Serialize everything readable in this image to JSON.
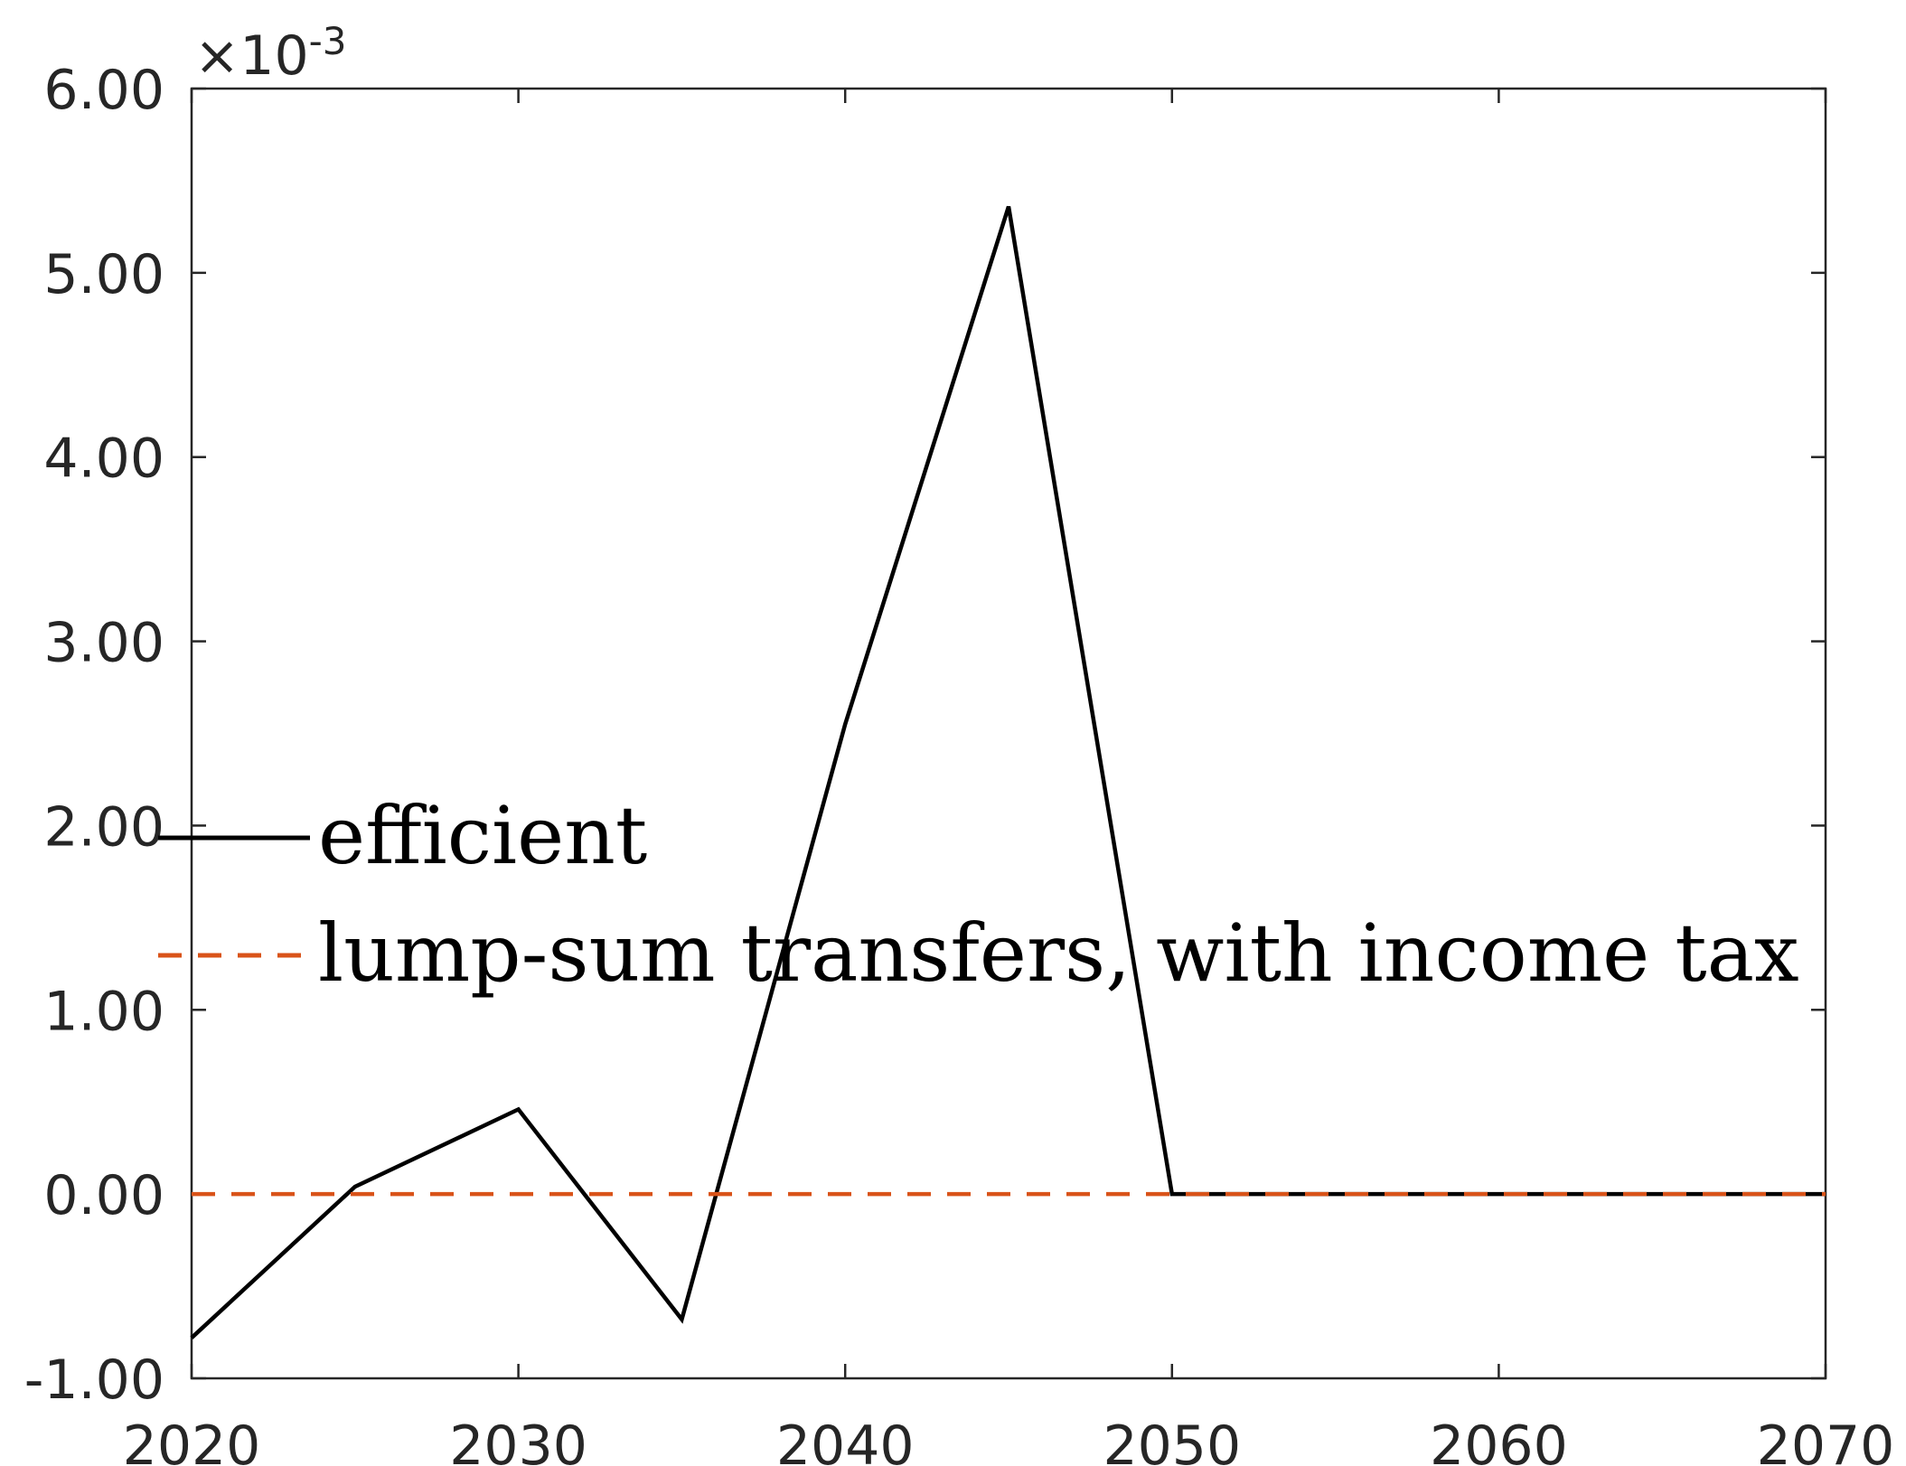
{
  "chart_data": {
    "type": "line",
    "title": "",
    "xlabel": "",
    "ylabel": "",
    "x_ticks": [
      "2020",
      "2030",
      "2040",
      "2050",
      "2060",
      "2070"
    ],
    "y_ticks": [
      "-1.00",
      "0.00",
      "1.00",
      "2.00",
      "3.00",
      "4.00",
      "5.00",
      "6.00"
    ],
    "y_exponent": {
      "base": "×10",
      "power": "-3"
    },
    "xlim": [
      2020,
      2070
    ],
    "ylim": [
      -1.0,
      6.0
    ],
    "grid": false,
    "legend_position": "center-left",
    "series": [
      {
        "name": "efficient",
        "color": "#000000",
        "style": "solid",
        "x": [
          2020,
          2025,
          2030,
          2035,
          2040,
          2045,
          2050,
          2055,
          2060,
          2065,
          2070
        ],
        "y": [
          -0.78,
          0.04,
          0.46,
          -0.68,
          2.55,
          5.36,
          0.0,
          0.0,
          0.0,
          0.0,
          0.0
        ]
      },
      {
        "name": "lump-sum transfers, with income tax",
        "color": "#D95319",
        "style": "dashed",
        "x": [
          2020,
          2025,
          2030,
          2035,
          2040,
          2045,
          2050,
          2055,
          2060,
          2065,
          2070
        ],
        "y": [
          0.0,
          0.0,
          0.0,
          0.0,
          0.0,
          0.0,
          0.0,
          0.0,
          0.0,
          0.0,
          0.0
        ]
      }
    ]
  }
}
